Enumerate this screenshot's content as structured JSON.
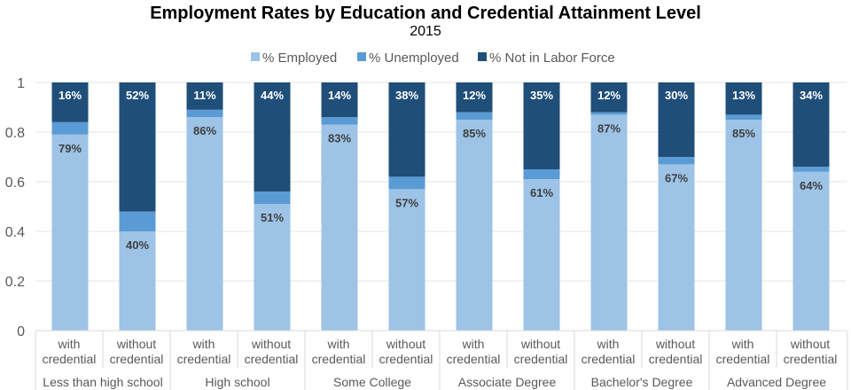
{
  "chart_data": {
    "type": "bar",
    "stacked": true,
    "title": "Employment Rates by Education and Credential Attainment Level",
    "subtitle": "2015",
    "ylim": [
      0,
      1
    ],
    "yticks": [
      "0",
      "0.2",
      "0.4",
      "0.6",
      "0.8",
      "1"
    ],
    "grid": true,
    "legend_position": "top",
    "groups": [
      "Less than high school",
      "High school",
      "Some College",
      "Associate Degree",
      "Bachelor's Degree",
      "Advanced Degree"
    ],
    "subcategories": [
      [
        "with",
        "credential"
      ],
      [
        "without",
        "credential"
      ]
    ],
    "series": [
      {
        "name": "% Employed",
        "color": "#9DC3E6",
        "values": [
          0.79,
          0.4,
          0.86,
          0.51,
          0.83,
          0.57,
          0.85,
          0.61,
          0.87,
          0.67,
          0.85,
          0.64
        ],
        "labels": [
          "79%",
          "40%",
          "86%",
          "51%",
          "83%",
          "57%",
          "85%",
          "61%",
          "87%",
          "67%",
          "85%",
          "64%"
        ]
      },
      {
        "name": "% Unemployed",
        "color": "#5B9BD5",
        "values": [
          0.05,
          0.08,
          0.03,
          0.05,
          0.03,
          0.05,
          0.03,
          0.04,
          0.01,
          0.03,
          0.02,
          0.02
        ]
      },
      {
        "name": "% Not in Labor Force",
        "color": "#1F4E79",
        "values": [
          0.16,
          0.52,
          0.11,
          0.44,
          0.14,
          0.38,
          0.12,
          0.35,
          0.12,
          0.3,
          0.13,
          0.34
        ],
        "labels": [
          "16%",
          "52%",
          "11%",
          "44%",
          "14%",
          "38%",
          "12%",
          "35%",
          "12%",
          "30%",
          "13%",
          "34%"
        ]
      }
    ]
  }
}
